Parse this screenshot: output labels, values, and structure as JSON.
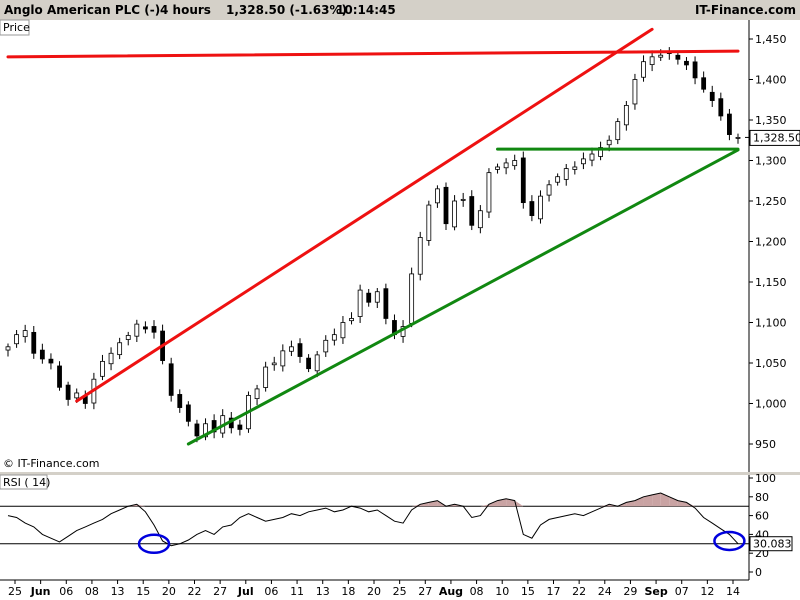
{
  "header": {
    "instrument": "Anglo American PLC (-)",
    "timeframe": "4 hours",
    "quote": "1,328.50 (-1.63%)",
    "time": "10:14:45",
    "brand": "IT-Finance.com"
  },
  "price_panel": {
    "label": "Price",
    "watermark": "© IT-Finance.com",
    "last_price_label": "1,328.50"
  },
  "rsi_panel": {
    "label": "RSI ( 14)",
    "last_value_label": "30.083"
  },
  "colors": {
    "resistance": "#ee1111",
    "support": "#118811",
    "candle_up": "#ffffff",
    "candle_down": "#000000",
    "rsi_fill": "#c9a3a3",
    "circle": "#0000dd"
  },
  "chart_data": [
    {
      "type": "candlestick",
      "ylim": [
        925,
        1465
      ],
      "y_ticks": [
        950,
        1000,
        1050,
        1100,
        1150,
        1200,
        1250,
        1300,
        1350,
        1400,
        1450
      ],
      "y_tick_labels": [
        "950",
        "1,000",
        "1,050",
        "1,100",
        "1,150",
        "1,200",
        "1,250",
        "1,300",
        "1,350",
        "1,400",
        "1,450"
      ],
      "x_tick_labels": [
        {
          "label": "25",
          "major": false
        },
        {
          "label": "Jun",
          "major": true
        },
        {
          "label": "06",
          "major": false
        },
        {
          "label": "08",
          "major": false
        },
        {
          "label": "13",
          "major": false
        },
        {
          "label": "15",
          "major": false
        },
        {
          "label": "20",
          "major": false
        },
        {
          "label": "22",
          "major": false
        },
        {
          "label": "27",
          "major": false
        },
        {
          "label": "Jul",
          "major": true
        },
        {
          "label": "06",
          "major": false
        },
        {
          "label": "11",
          "major": false
        },
        {
          "label": "13",
          "major": false
        },
        {
          "label": "18",
          "major": false
        },
        {
          "label": "20",
          "major": false
        },
        {
          "label": "25",
          "major": false
        },
        {
          "label": "27",
          "major": false
        },
        {
          "label": "Aug",
          "major": true
        },
        {
          "label": "08",
          "major": false
        },
        {
          "label": "10",
          "major": false
        },
        {
          "label": "15",
          "major": false
        },
        {
          "label": "17",
          "major": false
        },
        {
          "label": "22",
          "major": false
        },
        {
          "label": "24",
          "major": false
        },
        {
          "label": "29",
          "major": false
        },
        {
          "label": "Sep",
          "major": true
        },
        {
          "label": "07",
          "major": false
        },
        {
          "label": "12",
          "major": false
        },
        {
          "label": "14",
          "major": false
        }
      ],
      "price_path": [
        1070,
        1085,
        1090,
        1062,
        1055,
        1050,
        1020,
        1005,
        1013,
        1000,
        1030,
        1052,
        1062,
        1075,
        1084,
        1098,
        1092,
        1088,
        1053,
        1010,
        995,
        978,
        960,
        975,
        965,
        985,
        970,
        968,
        1010,
        1018,
        1045,
        1050,
        1065,
        1070,
        1058,
        1043,
        1060,
        1078,
        1085,
        1100,
        1105,
        1140,
        1125,
        1138,
        1105,
        1085,
        1095,
        1160,
        1205,
        1245,
        1265,
        1222,
        1250,
        1252,
        1220,
        1238,
        1285,
        1292,
        1297,
        1300,
        1248,
        1232,
        1256,
        1270,
        1280,
        1290,
        1292,
        1302,
        1308,
        1316,
        1325,
        1348,
        1368,
        1400,
        1422,
        1428,
        1430,
        1432,
        1425,
        1418,
        1402,
        1388,
        1374,
        1355,
        1332,
        1328.5
      ],
      "last": 1328.5,
      "trendlines": [
        {
          "kind": "resistance",
          "from": {
            "bar": 0,
            "price": 1428
          },
          "to": {
            "bar": 85,
            "price": 1435
          }
        },
        {
          "kind": "resistance",
          "from": {
            "bar": 8,
            "price": 1003
          },
          "to": {
            "bar": 75,
            "price": 1462
          }
        },
        {
          "kind": "support",
          "from": {
            "bar": 21,
            "price": 950
          },
          "to": {
            "bar": 85,
            "price": 1313
          }
        },
        {
          "kind": "support",
          "from": {
            "bar": 57,
            "price": 1314
          },
          "to": {
            "bar": 85,
            "price": 1314
          }
        }
      ]
    },
    {
      "type": "line",
      "name": "RSI ( 14)",
      "ylim": [
        -5,
        105
      ],
      "y_ticks": [
        0,
        20,
        40,
        60,
        80,
        100
      ],
      "levels": [
        70,
        30
      ],
      "last": 30.083,
      "circles": [
        {
          "bar": 17,
          "value": 30
        },
        {
          "bar": 84,
          "value": 33
        }
      ],
      "values": [
        60,
        58,
        52,
        48,
        40,
        36,
        32,
        38,
        44,
        48,
        52,
        56,
        62,
        66,
        70,
        72,
        64,
        50,
        33,
        28,
        30,
        34,
        40,
        44,
        40,
        48,
        50,
        58,
        62,
        58,
        54,
        56,
        58,
        62,
        60,
        64,
        66,
        68,
        64,
        66,
        70,
        68,
        64,
        66,
        60,
        54,
        52,
        66,
        72,
        74,
        76,
        70,
        72,
        70,
        58,
        60,
        72,
        76,
        78,
        76,
        40,
        36,
        50,
        56,
        58,
        60,
        62,
        60,
        64,
        68,
        72,
        70,
        74,
        76,
        80,
        82,
        84,
        80,
        76,
        74,
        68,
        58,
        52,
        46,
        40,
        30.083
      ]
    }
  ]
}
